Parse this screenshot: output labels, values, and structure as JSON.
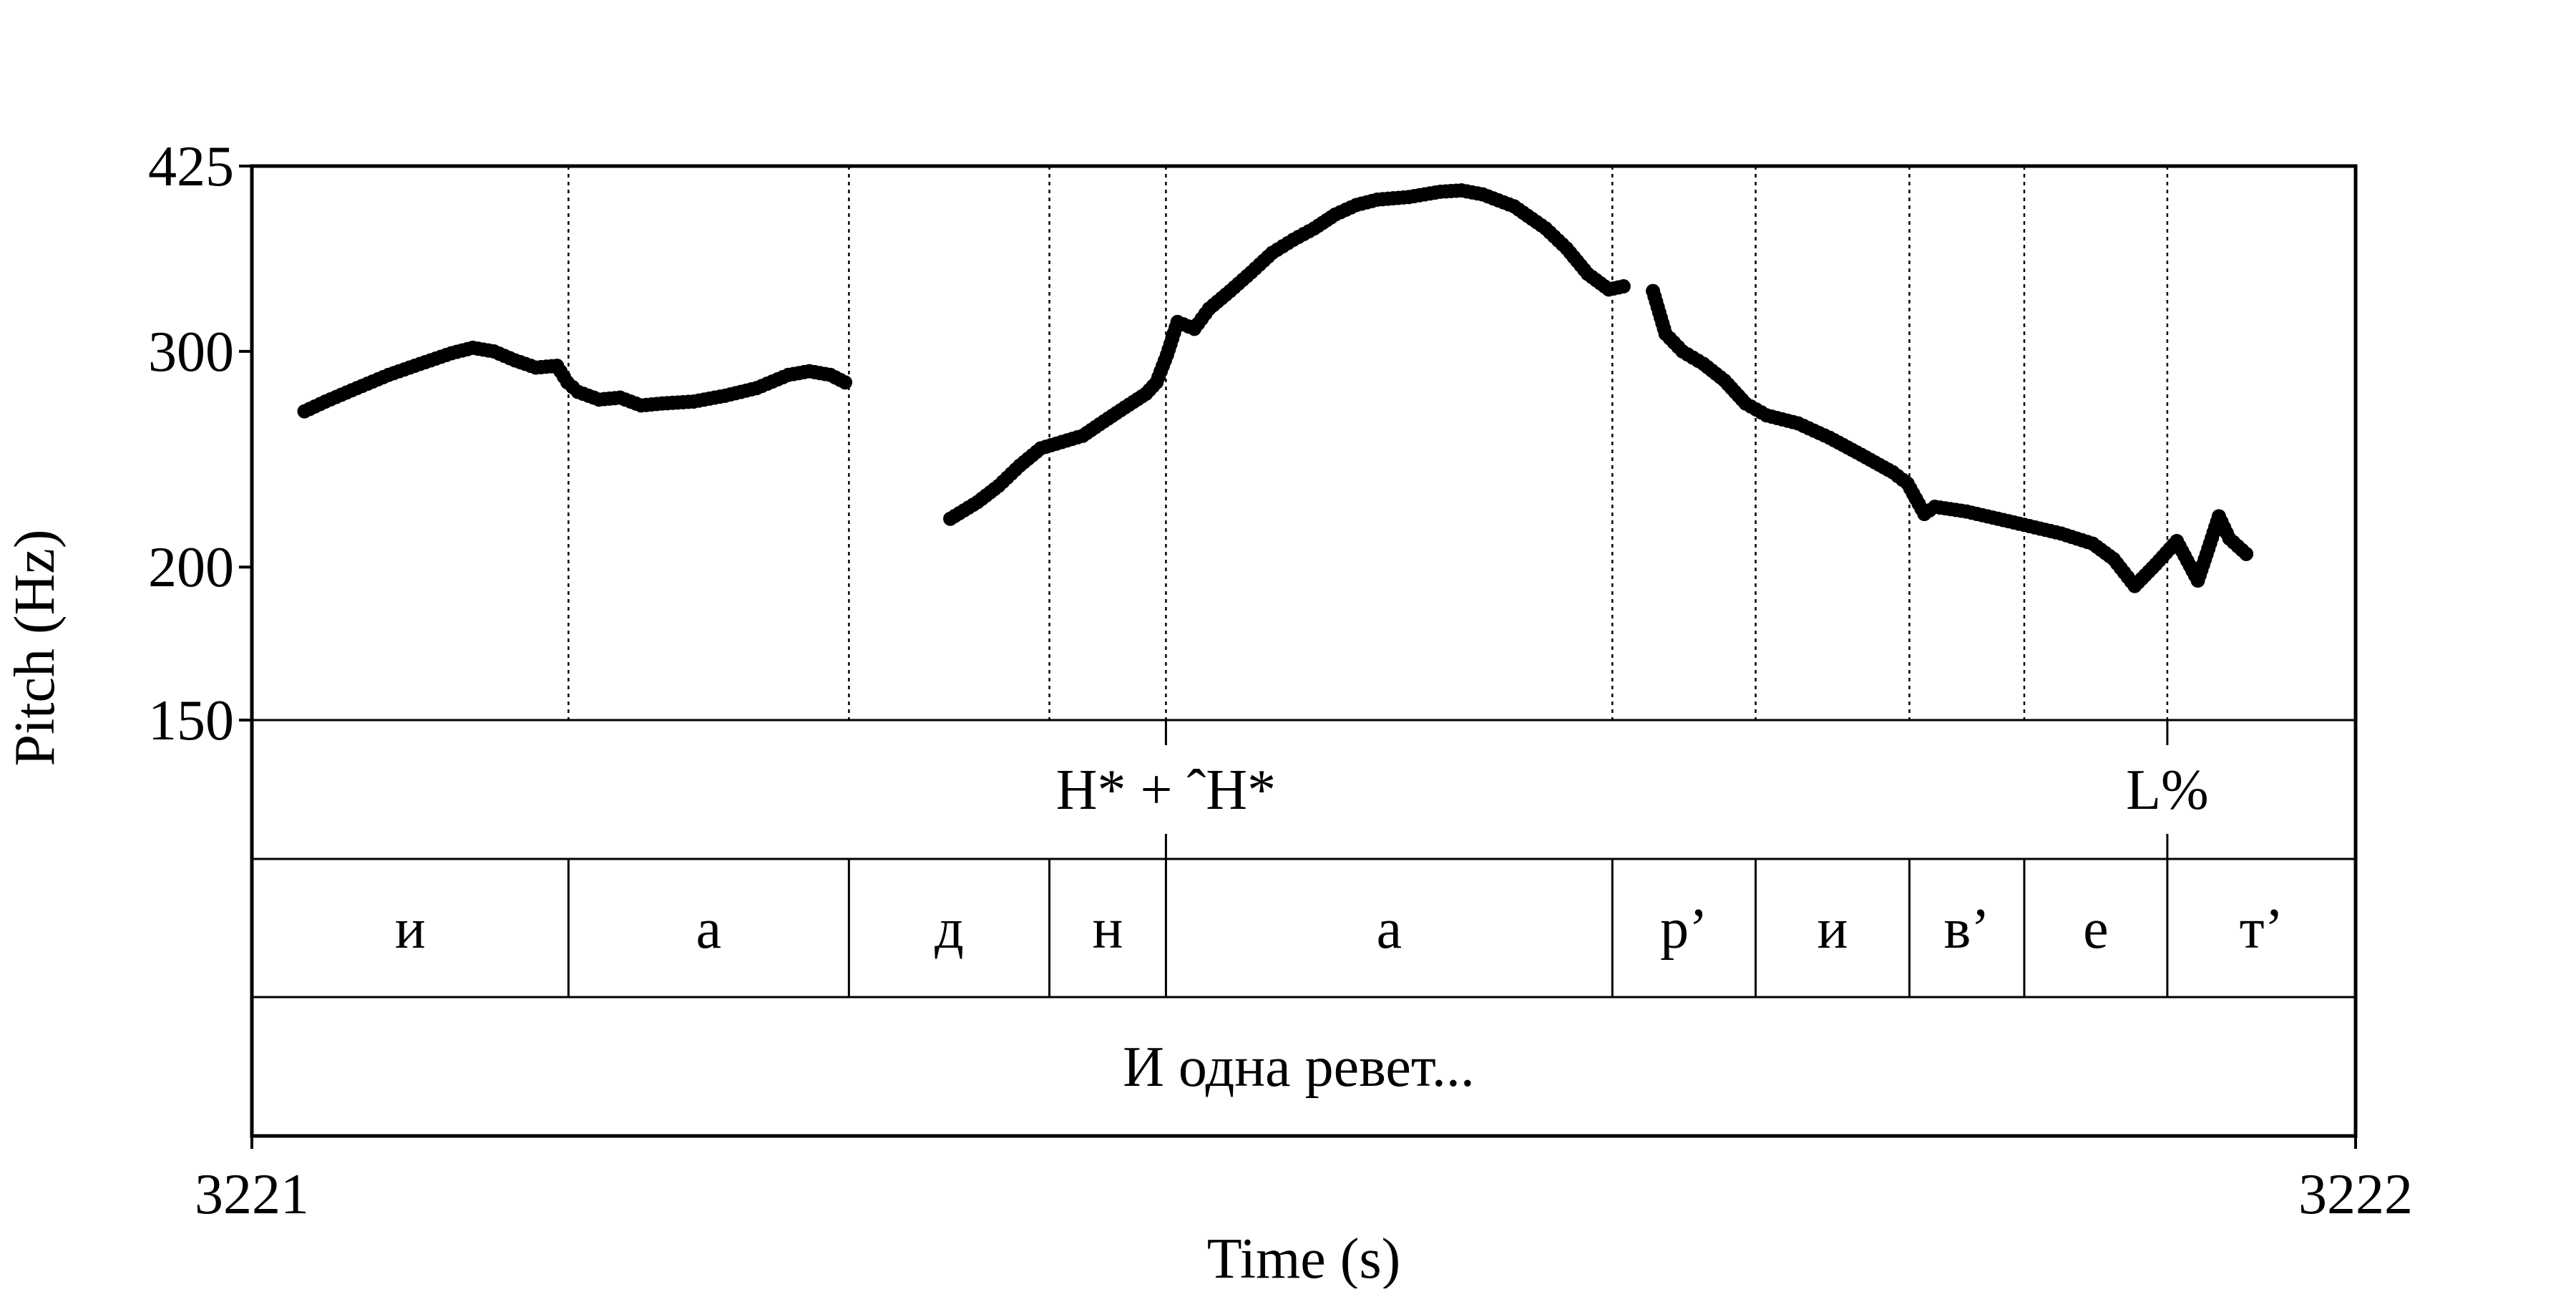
{
  "chart_data": {
    "type": "scatter",
    "ylabel": "Pitch (Hz)",
    "xlabel": "Time (s)",
    "xlim": [
      3221,
      3222
    ],
    "ylim": [
      150,
      425
    ],
    "ytick_labels": [
      "425",
      "300",
      "200",
      "150"
    ],
    "xtick_labels": [
      "3221",
      "3222"
    ],
    "boundaries": [
      3221.1505,
      3221.2838,
      3221.3791,
      3221.4345,
      3221.6467,
      3221.7148,
      3221.7879,
      3221.8425,
      3221.9105
    ],
    "tone_tier": [
      {
        "label": "H* + ˆH*",
        "time": 3221.4345
      },
      {
        "label": "L%",
        "time": 3221.9105
      }
    ],
    "segments": [
      {
        "label": "и",
        "start": 3221.0,
        "end": 3221.1505
      },
      {
        "label": "а",
        "start": 3221.1505,
        "end": 3221.2838
      },
      {
        "label": "д",
        "start": 3221.2838,
        "end": 3221.3791
      },
      {
        "label": "н",
        "start": 3221.3791,
        "end": 3221.4345
      },
      {
        "label": "а",
        "start": 3221.4345,
        "end": 3221.6467
      },
      {
        "label": "р’",
        "start": 3221.6467,
        "end": 3221.7148
      },
      {
        "label": "и",
        "start": 3221.7148,
        "end": 3221.7879
      },
      {
        "label": "в’",
        "start": 3221.7879,
        "end": 3221.8425
      },
      {
        "label": "е",
        "start": 3221.8425,
        "end": 3221.9105
      },
      {
        "label": "т’",
        "start": 3221.9105,
        "end": 3222.0
      }
    ],
    "utterance": "И одна ревет...",
    "series": [
      {
        "points": [
          [
            3221.025,
            268
          ],
          [
            3221.035,
            273
          ],
          [
            3221.05,
            280
          ],
          [
            3221.065,
            287
          ],
          [
            3221.08,
            293
          ],
          [
            3221.095,
            299
          ],
          [
            3221.105,
            302
          ],
          [
            3221.115,
            300
          ],
          [
            3221.125,
            295
          ],
          [
            3221.135,
            291
          ],
          [
            3221.145,
            292
          ],
          [
            3221.15,
            283
          ],
          [
            3221.155,
            278
          ],
          [
            3221.165,
            274
          ],
          [
            3221.175,
            275
          ],
          [
            3221.185,
            271
          ],
          [
            3221.195,
            272
          ],
          [
            3221.21,
            273
          ],
          [
            3221.225,
            276
          ],
          [
            3221.24,
            280
          ],
          [
            3221.255,
            287
          ],
          [
            3221.265,
            289
          ],
          [
            3221.275,
            287
          ],
          [
            3221.282,
            283
          ]
        ]
      },
      {
        "points": [
          [
            3221.332,
            219
          ],
          [
            3221.345,
            226
          ],
          [
            3221.355,
            233
          ],
          [
            3221.365,
            242
          ],
          [
            3221.375,
            250
          ],
          [
            3221.385,
            253
          ],
          [
            3221.395,
            256
          ],
          [
            3221.405,
            263
          ],
          [
            3221.415,
            270
          ],
          [
            3221.425,
            277
          ],
          [
            3221.43,
            283
          ],
          [
            3221.435,
            298
          ],
          [
            3221.44,
            317
          ],
          [
            3221.448,
            313
          ],
          [
            3221.455,
            325
          ],
          [
            3221.465,
            336
          ],
          [
            3221.475,
            348
          ],
          [
            3221.485,
            361
          ],
          [
            3221.495,
            370
          ],
          [
            3221.505,
            378
          ],
          [
            3221.515,
            388
          ],
          [
            3221.525,
            395
          ],
          [
            3221.535,
            399
          ],
          [
            3221.55,
            401
          ],
          [
            3221.565,
            405
          ],
          [
            3221.575,
            406
          ],
          [
            3221.585,
            403
          ],
          [
            3221.6,
            394
          ],
          [
            3221.615,
            378
          ],
          [
            3221.625,
            364
          ],
          [
            3221.635,
            347
          ],
          [
            3221.645,
            337
          ],
          [
            3221.652,
            339
          ]
        ]
      },
      {
        "points": [
          [
            3221.666,
            336
          ],
          [
            3221.672,
            310
          ],
          [
            3221.68,
            300
          ],
          [
            3221.69,
            293
          ],
          [
            3221.7,
            284
          ],
          [
            3221.71,
            272
          ],
          [
            3221.72,
            266
          ],
          [
            3221.735,
            262
          ],
          [
            3221.75,
            255
          ],
          [
            3221.765,
            247
          ],
          [
            3221.78,
            239
          ],
          [
            3221.787,
            234
          ],
          [
            3221.795,
            221
          ],
          [
            3221.8,
            224
          ],
          [
            3221.815,
            222
          ],
          [
            3221.83,
            219
          ],
          [
            3221.845,
            216
          ],
          [
            3221.86,
            213
          ],
          [
            3221.875,
            209
          ],
          [
            3221.885,
            203
          ],
          [
            3221.895,
            193
          ],
          [
            3221.905,
            201
          ],
          [
            3221.915,
            210
          ],
          [
            3221.925,
            195
          ],
          [
            3221.93,
            207
          ],
          [
            3221.935,
            220
          ],
          [
            3221.94,
            211
          ],
          [
            3221.948,
            205
          ]
        ]
      }
    ]
  }
}
